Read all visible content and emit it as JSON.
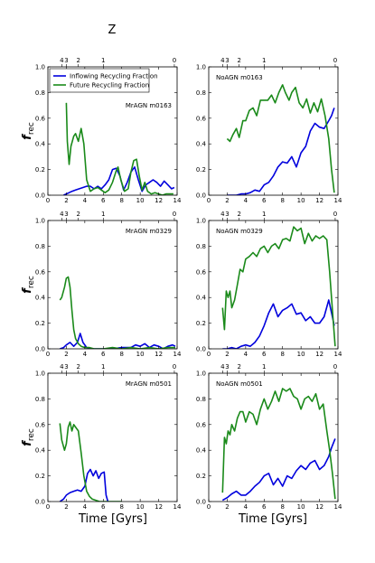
{
  "figure": {
    "z_axis_label": "Z",
    "x_axis_label": "Time [Gyrs]",
    "y_axis_label_main": "f",
    "y_axis_label_sub": "rec"
  },
  "legend": {
    "placement": "top-left of first panel",
    "entries": [
      {
        "label": "Inflowing Recycling Fraction",
        "color": "#0000dd"
      },
      {
        "label": "Future Recycling Fraction",
        "color": "#1a8a1a"
      }
    ]
  },
  "colors": {
    "inflowing": "#0000dd",
    "future": "#1a8a1a"
  },
  "chart_data": [
    {
      "type": "line",
      "panel": "top-left",
      "title": "MrAGN m0163",
      "xlim": [
        0,
        14
      ],
      "ylim": [
        0,
        1.0
      ],
      "xticks": [
        "0",
        "2",
        "4",
        "6",
        "8",
        "10",
        "12",
        "14"
      ],
      "yticks": [
        "0.0",
        "0.2",
        "0.4",
        "0.6",
        "0.8",
        "1.0"
      ],
      "z_ticks": [
        {
          "t": 1.5,
          "label": "4"
        },
        {
          "t": 2.0,
          "label": "3"
        },
        {
          "t": 3.3,
          "label": "2"
        },
        {
          "t": 6.0,
          "label": "1"
        },
        {
          "t": 13.7,
          "label": "0"
        }
      ],
      "series": [
        {
          "name": "Inflowing Recycling Fraction",
          "color": "#0000dd",
          "x": [
            1.7,
            2.0,
            2.3,
            2.6,
            3.0,
            3.4,
            3.8,
            4.2,
            4.6,
            5.0,
            5.4,
            5.8,
            6.2,
            6.6,
            7.0,
            7.4,
            7.8,
            8.2,
            8.6,
            9.0,
            9.4,
            9.8,
            10.2,
            10.6,
            11.0,
            11.4,
            11.8,
            12.2,
            12.6,
            13.0,
            13.4,
            13.7
          ],
          "y": [
            0.0,
            0.01,
            0.02,
            0.03,
            0.04,
            0.05,
            0.06,
            0.07,
            0.07,
            0.05,
            0.07,
            0.05,
            0.08,
            0.12,
            0.2,
            0.21,
            0.15,
            0.04,
            0.1,
            0.18,
            0.22,
            0.12,
            0.03,
            0.08,
            0.1,
            0.12,
            0.1,
            0.07,
            0.11,
            0.08,
            0.05,
            0.06
          ]
        },
        {
          "name": "Future Recycling Fraction",
          "color": "#1a8a1a",
          "x": [
            2.0,
            2.1,
            2.3,
            2.5,
            2.8,
            3.0,
            3.3,
            3.6,
            3.9,
            4.2,
            4.6,
            5.0,
            5.4,
            5.8,
            6.2,
            6.6,
            7.0,
            7.4,
            7.6,
            7.9,
            8.3,
            8.7,
            9.0,
            9.3,
            9.6,
            9.9,
            10.2,
            10.5,
            10.8,
            11.2,
            11.6,
            12.0,
            12.4,
            12.8,
            13.2,
            13.6
          ],
          "y": [
            0.72,
            0.42,
            0.24,
            0.38,
            0.46,
            0.48,
            0.42,
            0.52,
            0.4,
            0.12,
            0.03,
            0.05,
            0.06,
            0.04,
            0.02,
            0.04,
            0.1,
            0.19,
            0.22,
            0.12,
            0.03,
            0.05,
            0.18,
            0.27,
            0.28,
            0.15,
            0.04,
            0.1,
            0.03,
            0.01,
            0.02,
            0.01,
            0.0,
            0.01,
            0.01,
            0.01
          ]
        }
      ]
    },
    {
      "type": "line",
      "panel": "top-right",
      "title": "NoAGN m0163",
      "xlim": [
        0,
        14
      ],
      "ylim": [
        0,
        1.0
      ],
      "xticks": [
        "0",
        "2",
        "4",
        "6",
        "8",
        "10",
        "12",
        "14"
      ],
      "yticks": [
        "0.0",
        "0.2",
        "0.4",
        "0.6",
        "0.8",
        "1.0"
      ],
      "z_ticks": [
        {
          "t": 1.5,
          "label": "4"
        },
        {
          "t": 2.0,
          "label": "3"
        },
        {
          "t": 3.3,
          "label": "2"
        },
        {
          "t": 6.0,
          "label": "1"
        },
        {
          "t": 13.7,
          "label": "0"
        }
      ],
      "series": [
        {
          "name": "Inflowing Recycling Fraction",
          "color": "#0000dd",
          "x": [
            2.0,
            2.5,
            3.0,
            3.5,
            4.0,
            4.5,
            5.0,
            5.5,
            6.0,
            6.5,
            7.0,
            7.5,
            8.0,
            8.5,
            9.0,
            9.5,
            10.0,
            10.5,
            11.0,
            11.5,
            12.0,
            12.5,
            13.0,
            13.3,
            13.6
          ],
          "y": [
            0.0,
            0.0,
            0.0,
            0.01,
            0.01,
            0.02,
            0.04,
            0.03,
            0.08,
            0.1,
            0.15,
            0.22,
            0.26,
            0.25,
            0.3,
            0.22,
            0.33,
            0.38,
            0.5,
            0.56,
            0.53,
            0.52,
            0.58,
            0.62,
            0.68
          ]
        },
        {
          "name": "Future Recycling Fraction",
          "color": "#1a8a1a",
          "x": [
            2.0,
            2.3,
            2.6,
            3.0,
            3.3,
            3.7,
            4.0,
            4.4,
            4.8,
            5.2,
            5.6,
            6.0,
            6.4,
            6.8,
            7.2,
            7.6,
            8.0,
            8.3,
            8.7,
            9.0,
            9.4,
            9.8,
            10.2,
            10.6,
            11.0,
            11.4,
            11.8,
            12.2,
            12.6,
            13.0,
            13.3,
            13.6
          ],
          "y": [
            0.44,
            0.42,
            0.47,
            0.52,
            0.45,
            0.58,
            0.58,
            0.66,
            0.68,
            0.62,
            0.74,
            0.74,
            0.74,
            0.78,
            0.72,
            0.8,
            0.86,
            0.8,
            0.74,
            0.8,
            0.84,
            0.72,
            0.68,
            0.75,
            0.64,
            0.72,
            0.65,
            0.75,
            0.62,
            0.44,
            0.2,
            0.02
          ]
        }
      ]
    },
    {
      "type": "line",
      "panel": "middle-left",
      "title": "MrAGN m0329",
      "xlim": [
        0,
        14
      ],
      "ylim": [
        0,
        1.0
      ],
      "xticks": [
        "0",
        "2",
        "4",
        "6",
        "8",
        "10",
        "12",
        "14"
      ],
      "yticks": [
        "0.0",
        "0.2",
        "0.4",
        "0.6",
        "0.8",
        "1.0"
      ],
      "z_ticks": [
        {
          "t": 1.5,
          "label": "4"
        },
        {
          "t": 2.0,
          "label": "3"
        },
        {
          "t": 3.3,
          "label": "2"
        },
        {
          "t": 6.0,
          "label": "1"
        },
        {
          "t": 13.7,
          "label": "0"
        }
      ],
      "series": [
        {
          "name": "Inflowing Recycling Fraction",
          "color": "#0000dd",
          "x": [
            1.3,
            1.7,
            2.0,
            2.4,
            2.8,
            3.2,
            3.5,
            3.8,
            4.2,
            4.6,
            5.0,
            6.0,
            7.0,
            8.0,
            9.0,
            9.5,
            10.0,
            10.5,
            11.0,
            11.5,
            12.0,
            12.5,
            13.0,
            13.5,
            13.8
          ],
          "y": [
            0.0,
            0.01,
            0.03,
            0.05,
            0.02,
            0.05,
            0.12,
            0.05,
            0.01,
            0.0,
            0.0,
            0.0,
            0.0,
            0.01,
            0.01,
            0.03,
            0.02,
            0.04,
            0.01,
            0.03,
            0.02,
            0.0,
            0.02,
            0.03,
            0.02
          ]
        },
        {
          "name": "Future Recycling Fraction",
          "color": "#1a8a1a",
          "x": [
            1.3,
            1.5,
            1.8,
            2.0,
            2.2,
            2.4,
            2.6,
            2.8,
            3.0,
            3.3,
            3.6,
            4.0,
            4.5,
            5.0,
            6.0,
            7.0,
            8.0,
            9.0,
            10.0,
            11.0,
            12.0,
            13.0,
            13.8
          ],
          "y": [
            0.38,
            0.4,
            0.48,
            0.55,
            0.56,
            0.48,
            0.3,
            0.15,
            0.08,
            0.04,
            0.02,
            0.01,
            0.01,
            0.0,
            0.0,
            0.01,
            0.0,
            0.01,
            0.0,
            0.01,
            0.0,
            0.01,
            0.01
          ]
        }
      ]
    },
    {
      "type": "line",
      "panel": "middle-right",
      "title": "NoAGN m0329",
      "xlim": [
        0,
        14
      ],
      "ylim": [
        0,
        1.0
      ],
      "xticks": [
        "0",
        "2",
        "4",
        "6",
        "8",
        "10",
        "12",
        "14"
      ],
      "yticks": [
        "0.0",
        "0.2",
        "0.4",
        "0.6",
        "0.8",
        "1.0"
      ],
      "z_ticks": [
        {
          "t": 1.5,
          "label": "4"
        },
        {
          "t": 2.0,
          "label": "3"
        },
        {
          "t": 3.3,
          "label": "2"
        },
        {
          "t": 6.0,
          "label": "1"
        },
        {
          "t": 13.7,
          "label": "0"
        }
      ],
      "series": [
        {
          "name": "Inflowing Recycling Fraction",
          "color": "#0000dd",
          "x": [
            1.5,
            2.0,
            2.5,
            3.0,
            3.5,
            4.0,
            4.5,
            5.0,
            5.5,
            6.0,
            6.5,
            7.0,
            7.5,
            8.0,
            8.5,
            9.0,
            9.5,
            10.0,
            10.5,
            11.0,
            11.5,
            12.0,
            12.5,
            13.0,
            13.3,
            13.6
          ],
          "y": [
            0.0,
            0.0,
            0.01,
            0.0,
            0.02,
            0.03,
            0.02,
            0.05,
            0.1,
            0.18,
            0.28,
            0.35,
            0.25,
            0.3,
            0.32,
            0.35,
            0.27,
            0.28,
            0.22,
            0.25,
            0.2,
            0.2,
            0.25,
            0.38,
            0.28,
            0.18
          ]
        },
        {
          "name": "Future Recycling Fraction",
          "color": "#1a8a1a",
          "x": [
            1.5,
            1.7,
            1.9,
            2.1,
            2.3,
            2.5,
            2.8,
            3.1,
            3.4,
            3.7,
            4.0,
            4.4,
            4.8,
            5.2,
            5.6,
            6.0,
            6.4,
            6.8,
            7.2,
            7.6,
            8.0,
            8.4,
            8.8,
            9.2,
            9.6,
            10.0,
            10.4,
            10.8,
            11.2,
            11.6,
            12.0,
            12.4,
            12.8,
            13.1,
            13.4,
            13.7
          ],
          "y": [
            0.32,
            0.15,
            0.45,
            0.4,
            0.45,
            0.32,
            0.38,
            0.5,
            0.62,
            0.6,
            0.7,
            0.72,
            0.75,
            0.72,
            0.78,
            0.8,
            0.75,
            0.8,
            0.82,
            0.78,
            0.85,
            0.86,
            0.84,
            0.95,
            0.92,
            0.94,
            0.82,
            0.9,
            0.84,
            0.88,
            0.86,
            0.88,
            0.85,
            0.6,
            0.3,
            0.02
          ]
        }
      ]
    },
    {
      "type": "line",
      "panel": "bottom-left",
      "title": "MrAGN m0501",
      "xlim": [
        0,
        14
      ],
      "ylim": [
        0,
        1.0
      ],
      "xticks": [
        "0",
        "2",
        "4",
        "6",
        "8",
        "10",
        "12",
        "14"
      ],
      "yticks": [
        "0.0",
        "0.2",
        "0.4",
        "0.6",
        "0.8",
        "1.0"
      ],
      "z_ticks": [
        {
          "t": 1.5,
          "label": "4"
        },
        {
          "t": 2.0,
          "label": "3"
        },
        {
          "t": 3.3,
          "label": "2"
        },
        {
          "t": 6.0,
          "label": "1"
        },
        {
          "t": 13.7,
          "label": "0"
        }
      ],
      "series": [
        {
          "name": "Inflowing Recycling Fraction",
          "color": "#0000dd",
          "x": [
            1.3,
            1.7,
            2.0,
            2.4,
            2.8,
            3.2,
            3.6,
            4.0,
            4.3,
            4.6,
            4.9,
            5.2,
            5.5,
            5.8,
            6.1,
            6.3,
            6.5
          ],
          "y": [
            0.0,
            0.02,
            0.05,
            0.07,
            0.08,
            0.09,
            0.08,
            0.12,
            0.22,
            0.25,
            0.2,
            0.24,
            0.18,
            0.22,
            0.23,
            0.05,
            0.0
          ]
        },
        {
          "name": "Future Recycling Fraction",
          "color": "#1a8a1a",
          "x": [
            1.3,
            1.5,
            1.8,
            2.0,
            2.2,
            2.4,
            2.6,
            2.8,
            3.0,
            3.3,
            3.6,
            3.9,
            4.2,
            4.5,
            4.8,
            5.2,
            5.6,
            6.0,
            7.0,
            8.0
          ],
          "y": [
            0.61,
            0.48,
            0.4,
            0.45,
            0.58,
            0.62,
            0.55,
            0.6,
            0.58,
            0.55,
            0.38,
            0.2,
            0.08,
            0.04,
            0.02,
            0.01,
            0.0,
            0.0,
            0.0,
            0.0
          ]
        }
      ]
    },
    {
      "type": "line",
      "panel": "bottom-right",
      "title": "NoAGN m0501",
      "xlim": [
        0,
        14
      ],
      "ylim": [
        0,
        1.0
      ],
      "xticks": [
        "0",
        "2",
        "4",
        "6",
        "8",
        "10",
        "12",
        "14"
      ],
      "yticks": [
        "0.0",
        "0.2",
        "0.4",
        "0.6",
        "0.8",
        "1.0"
      ],
      "z_ticks": [
        {
          "t": 1.5,
          "label": "4"
        },
        {
          "t": 2.0,
          "label": "3"
        },
        {
          "t": 3.3,
          "label": "2"
        },
        {
          "t": 6.0,
          "label": "1"
        },
        {
          "t": 13.7,
          "label": "0"
        }
      ],
      "series": [
        {
          "name": "Inflowing Recycling Fraction",
          "color": "#0000dd",
          "x": [
            1.5,
            2.0,
            2.5,
            3.0,
            3.5,
            4.0,
            4.5,
            5.0,
            5.5,
            6.0,
            6.5,
            7.0,
            7.5,
            8.0,
            8.5,
            9.0,
            9.5,
            10.0,
            10.5,
            11.0,
            11.5,
            12.0,
            12.5,
            13.0,
            13.3,
            13.7
          ],
          "y": [
            0.01,
            0.03,
            0.06,
            0.08,
            0.05,
            0.05,
            0.08,
            0.12,
            0.15,
            0.2,
            0.22,
            0.13,
            0.18,
            0.12,
            0.2,
            0.18,
            0.24,
            0.28,
            0.25,
            0.3,
            0.32,
            0.25,
            0.28,
            0.35,
            0.42,
            0.49
          ]
        },
        {
          "name": "Future Recycling Fraction",
          "color": "#1a8a1a",
          "x": [
            1.5,
            1.7,
            1.9,
            2.1,
            2.3,
            2.5,
            2.8,
            3.1,
            3.4,
            3.7,
            4.0,
            4.4,
            4.8,
            5.2,
            5.6,
            6.0,
            6.4,
            6.8,
            7.2,
            7.6,
            8.0,
            8.4,
            8.8,
            9.2,
            9.6,
            10.0,
            10.4,
            10.8,
            11.2,
            11.6,
            12.0,
            12.4,
            12.8,
            13.1,
            13.4,
            13.7
          ],
          "y": [
            0.07,
            0.5,
            0.45,
            0.55,
            0.52,
            0.6,
            0.55,
            0.65,
            0.7,
            0.7,
            0.62,
            0.7,
            0.68,
            0.6,
            0.72,
            0.8,
            0.72,
            0.78,
            0.86,
            0.78,
            0.88,
            0.86,
            0.88,
            0.82,
            0.8,
            0.72,
            0.8,
            0.82,
            0.78,
            0.84,
            0.72,
            0.76,
            0.55,
            0.4,
            0.22,
            0.02
          ]
        }
      ]
    }
  ]
}
